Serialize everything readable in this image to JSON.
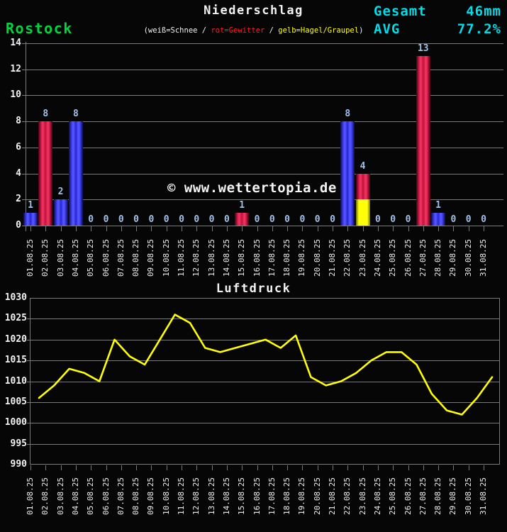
{
  "header": {
    "station": "Rostock",
    "title": "Niederschlag",
    "legend_parts": [
      {
        "text": "(weiß=Schnee / ",
        "color": "#f2f2f2"
      },
      {
        "text": "rot=Gewitter",
        "color": "#ff1f1f"
      },
      {
        "text": " / ",
        "color": "#f2f2f2"
      },
      {
        "text": "gelb=Hagel/Graupel",
        "color": "#ffff00"
      },
      {
        "text": ")",
        "color": "#f2f2f2"
      }
    ],
    "total_label": "Gesamt",
    "total_value": "46mm",
    "avg_label": "AVG",
    "avg_value": "77.2%"
  },
  "watermark": "© www.wettertopia.de",
  "colors": {
    "background": "#060606",
    "grid": "#7b7b7b",
    "accent_cyan": "#00dce8",
    "station_green": "#00d73f",
    "legend_red": "#ff1f1f",
    "legend_yellow": "#ffff00",
    "value_label_blue": "#a0c0ea",
    "bar_rain_blue": "#2626d8",
    "bar_thunderstorm_red": "#dc143c",
    "bar_hail_yellow": "#ffff00",
    "pressure_line_yellow": "#ffff00"
  },
  "chart_data": [
    {
      "type": "bar",
      "title": "Niederschlag",
      "station": "Rostock",
      "subtitle": "(weiß=Schnee / rot=Gewitter / gelb=Hagel/Graupel)",
      "total": "46mm",
      "avg": "77.2%",
      "ylim": [
        0,
        14
      ],
      "ytick_step": 2,
      "grid": true,
      "categories": [
        "01.08.25",
        "02.08.25",
        "03.08.25",
        "04.08.25",
        "05.08.25",
        "06.08.25",
        "07.08.25",
        "08.08.25",
        "09.08.25",
        "10.08.25",
        "11.08.25",
        "12.08.25",
        "13.08.25",
        "14.08.25",
        "15.08.25",
        "16.08.25",
        "17.08.25",
        "18.08.25",
        "19.08.25",
        "20.08.25",
        "21.08.25",
        "22.08.25",
        "23.08.25",
        "24.08.25",
        "25.08.25",
        "26.08.25",
        "27.08.25",
        "28.08.25",
        "29.08.25",
        "30.08.25",
        "31.08.25"
      ],
      "values": [
        1,
        8,
        2,
        8,
        0,
        0,
        0,
        0,
        0,
        0,
        0,
        0,
        0,
        0,
        1,
        0,
        0,
        0,
        0,
        0,
        0,
        8,
        4,
        0,
        0,
        0,
        13,
        1,
        0,
        0,
        0
      ],
      "bars": [
        {
          "date": "01.08.25",
          "value": 1,
          "segments": [
            {
              "type": "rain",
              "value": 1
            }
          ]
        },
        {
          "date": "02.08.25",
          "value": 8,
          "segments": [
            {
              "type": "thunderstorm",
              "value": 8
            }
          ]
        },
        {
          "date": "03.08.25",
          "value": 2,
          "segments": [
            {
              "type": "rain",
              "value": 2
            }
          ]
        },
        {
          "date": "04.08.25",
          "value": 8,
          "segments": [
            {
              "type": "rain",
              "value": 8
            }
          ]
        },
        {
          "date": "05.08.25",
          "value": 0,
          "segments": []
        },
        {
          "date": "06.08.25",
          "value": 0,
          "segments": []
        },
        {
          "date": "07.08.25",
          "value": 0,
          "segments": []
        },
        {
          "date": "08.08.25",
          "value": 0,
          "segments": []
        },
        {
          "date": "09.08.25",
          "value": 0,
          "segments": []
        },
        {
          "date": "10.08.25",
          "value": 0,
          "segments": []
        },
        {
          "date": "11.08.25",
          "value": 0,
          "segments": []
        },
        {
          "date": "12.08.25",
          "value": 0,
          "segments": []
        },
        {
          "date": "13.08.25",
          "value": 0,
          "segments": []
        },
        {
          "date": "14.08.25",
          "value": 0,
          "segments": []
        },
        {
          "date": "15.08.25",
          "value": 1,
          "segments": [
            {
              "type": "thunderstorm",
              "value": 1
            }
          ]
        },
        {
          "date": "16.08.25",
          "value": 0,
          "segments": []
        },
        {
          "date": "17.08.25",
          "value": 0,
          "segments": []
        },
        {
          "date": "18.08.25",
          "value": 0,
          "segments": []
        },
        {
          "date": "19.08.25",
          "value": 0,
          "segments": []
        },
        {
          "date": "20.08.25",
          "value": 0,
          "segments": []
        },
        {
          "date": "21.08.25",
          "value": 0,
          "segments": []
        },
        {
          "date": "22.08.25",
          "value": 8,
          "segments": [
            {
              "type": "rain",
              "value": 8
            }
          ]
        },
        {
          "date": "23.08.25",
          "value": 4,
          "segments": [
            {
              "type": "hail",
              "value": 2
            },
            {
              "type": "thunderstorm",
              "value": 2
            }
          ]
        },
        {
          "date": "24.08.25",
          "value": 0,
          "segments": []
        },
        {
          "date": "25.08.25",
          "value": 0,
          "segments": []
        },
        {
          "date": "26.08.25",
          "value": 0,
          "segments": []
        },
        {
          "date": "27.08.25",
          "value": 13,
          "segments": [
            {
              "type": "thunderstorm",
              "value": 13
            }
          ]
        },
        {
          "date": "28.08.25",
          "value": 1,
          "segments": [
            {
              "type": "rain",
              "value": 1
            }
          ]
        },
        {
          "date": "29.08.25",
          "value": 0,
          "segments": []
        },
        {
          "date": "30.08.25",
          "value": 0,
          "segments": []
        },
        {
          "date": "31.08.25",
          "value": 0,
          "segments": []
        }
      ]
    },
    {
      "type": "line",
      "title": "Luftdruck",
      "ylim": [
        990,
        1030
      ],
      "ytick_step": 5,
      "grid": true,
      "line_color": "#ffff00",
      "categories": [
        "01.08.25",
        "02.08.25",
        "03.08.25",
        "04.08.25",
        "05.08.25",
        "06.08.25",
        "07.08.25",
        "08.08.25",
        "09.08.25",
        "10.08.25",
        "11.08.25",
        "12.08.25",
        "13.08.25",
        "14.08.25",
        "15.08.25",
        "16.08.25",
        "17.08.25",
        "18.08.25",
        "19.08.25",
        "20.08.25",
        "21.08.25",
        "22.08.25",
        "23.08.25",
        "24.08.25",
        "25.08.25",
        "26.08.25",
        "27.08.25",
        "28.08.25",
        "29.08.25",
        "30.08.25",
        "31.08.25"
      ],
      "values": [
        1006,
        1009,
        1013,
        1012,
        1010,
        1020,
        1016,
        1014,
        1020,
        1026,
        1024,
        1018,
        1017,
        1018,
        1019,
        1020,
        1018,
        1021,
        1011,
        1009,
        1010,
        1012,
        1015,
        1017,
        1017,
        1014,
        1007,
        1003,
        1002,
        1006,
        1011
      ]
    }
  ]
}
